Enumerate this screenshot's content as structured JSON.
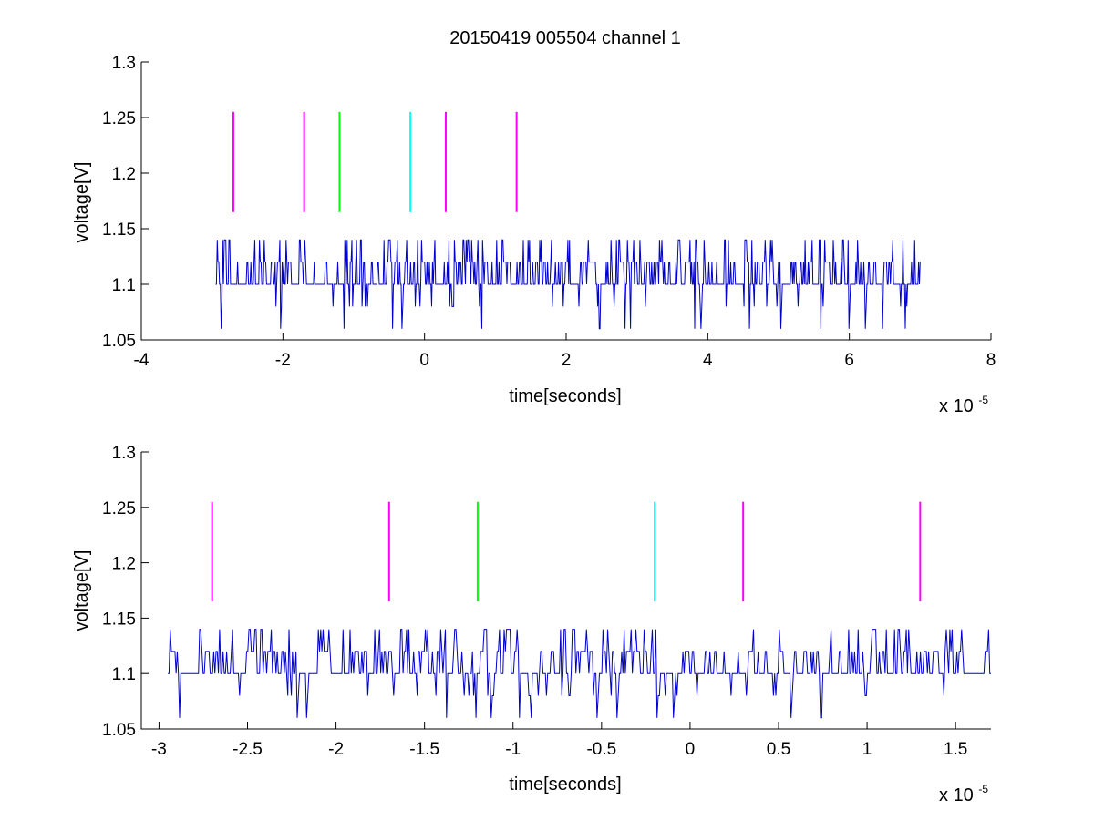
{
  "figure": {
    "title": "20150419 005504 channel 1",
    "background": "#ffffff",
    "axis_color": "#000000",
    "signal_color": "#0000cc"
  },
  "chart_data": [
    {
      "type": "line",
      "xlabel": "time[seconds]",
      "ylabel": "voltage[V]",
      "x_multiplier": {
        "base": "x 10",
        "exponent": "-5"
      },
      "xlim": [
        -4,
        8
      ],
      "ylim": [
        1.05,
        1.3
      ],
      "x_ticks": [
        -4,
        -2,
        0,
        2,
        4,
        6,
        8
      ],
      "x_tick_labels": [
        "-4",
        "-2",
        "0",
        "2",
        "4",
        "6",
        "8"
      ],
      "y_ticks": [
        1.05,
        1.1,
        1.15,
        1.2,
        1.25,
        1.3
      ],
      "y_tick_labels": [
        "1.05",
        "1.1",
        "1.15",
        "1.2",
        "1.25",
        "1.3"
      ],
      "grid": false,
      "signal": {
        "x_range": [
          -2.95,
          7.0
        ],
        "levels": [
          1.06,
          1.08,
          1.1,
          1.12,
          1.14
        ]
      },
      "markers": [
        {
          "x": -2.7,
          "y_range": [
            1.165,
            1.255
          ],
          "color": "#ff00ff"
        },
        {
          "x": -1.7,
          "y_range": [
            1.165,
            1.255
          ],
          "color": "#ff00ff"
        },
        {
          "x": -1.2,
          "y_range": [
            1.165,
            1.255
          ],
          "color": "#00ff00"
        },
        {
          "x": -0.2,
          "y_range": [
            1.165,
            1.255
          ],
          "color": "#00ffff"
        },
        {
          "x": 0.3,
          "y_range": [
            1.165,
            1.255
          ],
          "color": "#ff00ff"
        },
        {
          "x": 1.3,
          "y_range": [
            1.165,
            1.255
          ],
          "color": "#ff00ff"
        }
      ]
    },
    {
      "type": "line",
      "xlabel": "time[seconds]",
      "ylabel": "voltage[V]",
      "x_multiplier": {
        "base": "x 10",
        "exponent": "-5"
      },
      "xlim": [
        -3.1,
        1.7
      ],
      "ylim": [
        1.05,
        1.3
      ],
      "x_ticks": [
        -3,
        -2.5,
        -2,
        -1.5,
        -1,
        -0.5,
        0,
        0.5,
        1,
        1.5
      ],
      "x_tick_labels": [
        "-3",
        "-2.5",
        "-2",
        "-1.5",
        "-1",
        "-0.5",
        "0",
        "0.5",
        "1",
        "1.5"
      ],
      "y_ticks": [
        1.05,
        1.1,
        1.15,
        1.2,
        1.25,
        1.3
      ],
      "y_tick_labels": [
        "1.05",
        "1.1",
        "1.15",
        "1.2",
        "1.25",
        "1.3"
      ],
      "grid": false,
      "signal": {
        "x_range": [
          -2.95,
          1.7
        ],
        "levels": [
          1.06,
          1.08,
          1.1,
          1.12,
          1.14
        ]
      },
      "markers": [
        {
          "x": -2.7,
          "y_range": [
            1.165,
            1.255
          ],
          "color": "#ff00ff"
        },
        {
          "x": -1.7,
          "y_range": [
            1.165,
            1.255
          ],
          "color": "#ff00ff"
        },
        {
          "x": -1.2,
          "y_range": [
            1.165,
            1.255
          ],
          "color": "#00ff00"
        },
        {
          "x": -0.2,
          "y_range": [
            1.165,
            1.255
          ],
          "color": "#00ffff"
        },
        {
          "x": 0.3,
          "y_range": [
            1.165,
            1.255
          ],
          "color": "#ff00ff"
        },
        {
          "x": 1.3,
          "y_range": [
            1.165,
            1.255
          ],
          "color": "#ff00ff"
        }
      ]
    }
  ]
}
